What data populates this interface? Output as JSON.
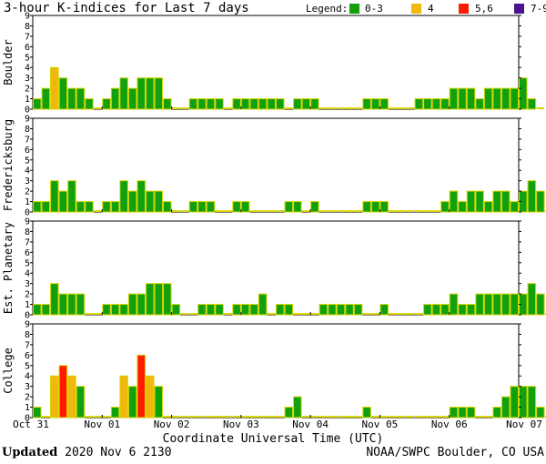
{
  "title": "3-hour K-indices for Last 7 days",
  "legend": {
    "label": "Legend:",
    "items": [
      {
        "label": "0-3",
        "color": "#11a10f"
      },
      {
        "label": "4",
        "color": "#f0b80c"
      },
      {
        "label": "5,6",
        "color": "#ff1a00"
      },
      {
        "label": "7-9",
        "color": "#4a148c"
      }
    ]
  },
  "footer": {
    "updated_label": "Updated",
    "updated_value": "2020 Nov  6 2130",
    "source": "NOAA/SWPC Boulder, CO USA"
  },
  "chart_data": {
    "type": "bar",
    "title": "3-hour K-indices for Last 7 days",
    "xlabel": "Coordinate Universal Time (UTC)",
    "x_tick_labels": [
      "Oct 31",
      "Nov 01",
      "Nov 02",
      "Nov 03",
      "Nov 04",
      "Nov 05",
      "Nov 06",
      "Nov 07"
    ],
    "ylim": [
      0,
      9
    ],
    "y_tick_labels": [
      "0",
      "1",
      "2",
      "3",
      "4",
      "5",
      "6",
      "7",
      "8",
      "9"
    ],
    "bars_per_day": 8,
    "color_scale": {
      "0-3": "#11a10f",
      "4": "#f0b80c",
      "5,6": "#ff1a00",
      "7-9": "#4a148c"
    },
    "series": [
      {
        "name": "Boulder",
        "values": [
          1,
          2,
          4,
          3,
          2,
          2,
          1,
          0,
          1,
          2,
          3,
          2,
          3,
          3,
          3,
          1,
          0,
          0,
          1,
          1,
          1,
          1,
          0,
          1,
          1,
          1,
          1,
          1,
          1,
          0,
          1,
          1,
          1,
          0,
          0,
          0,
          0,
          0,
          1,
          1,
          1,
          0,
          0,
          0,
          1,
          1,
          1,
          1,
          2,
          2,
          2,
          1,
          2,
          2,
          2,
          2,
          3,
          1,
          0
        ]
      },
      {
        "name": "Fredericksburg",
        "values": [
          1,
          1,
          3,
          2,
          3,
          1,
          1,
          0,
          1,
          1,
          3,
          2,
          3,
          2,
          2,
          1,
          0,
          0,
          1,
          1,
          1,
          0,
          0,
          1,
          1,
          0,
          0,
          0,
          0,
          1,
          1,
          0,
          1,
          0,
          0,
          0,
          0,
          0,
          1,
          1,
          1,
          0,
          0,
          0,
          0,
          0,
          0,
          1,
          2,
          1,
          2,
          2,
          1,
          2,
          2,
          1,
          2,
          3,
          2,
          0
        ]
      },
      {
        "name": "Est. Planetary",
        "values": [
          1,
          1,
          3,
          2,
          2,
          2,
          0,
          0,
          1,
          1,
          1,
          2,
          2,
          3,
          3,
          3,
          1,
          0,
          0,
          1,
          1,
          1,
          0,
          1,
          1,
          1,
          2,
          0,
          1,
          1,
          0,
          0,
          0,
          1,
          1,
          1,
          1,
          1,
          0,
          0,
          1,
          0,
          0,
          0,
          0,
          1,
          1,
          1,
          2,
          1,
          1,
          2,
          2,
          2,
          2,
          2,
          2,
          3,
          2,
          0
        ]
      },
      {
        "name": "College",
        "values": [
          1,
          0,
          4,
          5,
          4,
          3,
          0,
          0,
          0,
          1,
          4,
          3,
          6,
          4,
          3,
          0,
          0,
          0,
          0,
          0,
          0,
          0,
          0,
          0,
          0,
          0,
          0,
          0,
          0,
          1,
          2,
          0,
          0,
          0,
          0,
          0,
          0,
          0,
          1,
          0,
          0,
          0,
          0,
          0,
          0,
          0,
          0,
          0,
          1,
          1,
          1,
          0,
          0,
          1,
          2,
          3,
          3,
          3,
          1,
          0
        ]
      }
    ]
  }
}
